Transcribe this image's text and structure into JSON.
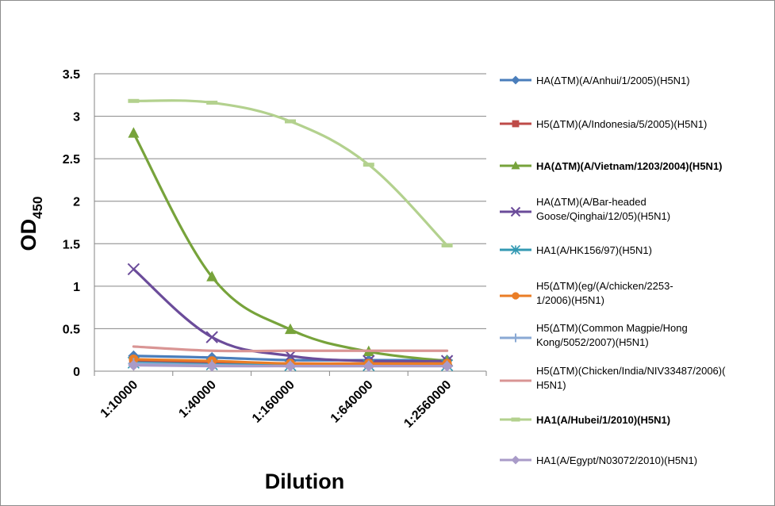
{
  "chart_data": {
    "type": "line",
    "categories": [
      "1:10000",
      "1:40000",
      "1:160000",
      "1:640000",
      "1:2560000"
    ],
    "xlabel": "Dilution",
    "ylabel": "OD",
    "ylabel_sub": "450",
    "ylim": [
      0,
      3.5
    ],
    "yticks": [
      "0",
      "0.5",
      "1",
      "1.5",
      "2",
      "2.5",
      "3",
      "3.5"
    ],
    "grid": true,
    "legend_position": "right",
    "series": [
      {
        "name": "HA(ΔTM)(A/Anhui/1/2005)(H5N1)",
        "legend_lines": [
          "HA(ΔTM)(A/Anhui/1/2005)(H5N1)"
        ],
        "bold": false,
        "color": "#4a7ebb",
        "marker": "diamond",
        "values": [
          0.18,
          0.16,
          0.13,
          0.13,
          0.13
        ]
      },
      {
        "name": "H5(ΔTM)(A/Indonesia/5/2005)(H5N1)",
        "legend_lines": [
          "H5(ΔTM)(A/Indonesia/5/2005)(H5N1)"
        ],
        "bold": false,
        "color": "#be4b48",
        "marker": "square",
        "values": [
          0.12,
          0.1,
          0.09,
          0.09,
          0.09
        ]
      },
      {
        "name": "HA(ΔTM)(A/Vietnam/1203/2004)(H5N1)",
        "legend_lines": [
          "HA(ΔTM)(A/Vietnam/1203/2004)(H5N1)"
        ],
        "bold": true,
        "color": "#77a33b",
        "marker": "triangle",
        "values": [
          2.8,
          1.11,
          0.49,
          0.23,
          0.12
        ]
      },
      {
        "name": "HA(ΔTM)(A/Bar-headed Goose/Qinghai/12/05)(H5N1)",
        "legend_lines": [
          "HA(ΔTM)(A/Bar-headed",
          "Goose/Qinghai/12/05)(H5N1)"
        ],
        "bold": false,
        "color": "#6b4c9a",
        "marker": "x",
        "values": [
          1.2,
          0.4,
          0.18,
          0.12,
          0.12
        ]
      },
      {
        "name": "HA1(A/HK156/97)(H5N1)",
        "legend_lines": [
          "HA1(A/HK156/97)(H5N1)"
        ],
        "bold": false,
        "color": "#3399b3",
        "marker": "asterisk",
        "values": [
          0.1,
          0.08,
          0.07,
          0.07,
          0.07
        ]
      },
      {
        "name": "H5(ΔTM)(eg/(A/chicken/2253-1/2006)(H5N1)",
        "legend_lines": [
          "H5(ΔTM)(eg/(A/chicken/2253-",
          "1/2006)(H5N1)"
        ],
        "bold": false,
        "color": "#ea7d26",
        "marker": "circle",
        "values": [
          0.14,
          0.12,
          0.09,
          0.09,
          0.09
        ]
      },
      {
        "name": "H5(ΔTM)(Common Magpie/Hong Kong/5052/2007)(H5N1)",
        "legend_lines": [
          "H5(ΔTM)(Common Magpie/Hong",
          "Kong/5052/2007)(H5N1)"
        ],
        "bold": false,
        "color": "#8aa9d4",
        "marker": "plus",
        "values": [
          0.09,
          0.07,
          0.06,
          0.06,
          0.06
        ]
      },
      {
        "name": "H5(ΔTM)(Chicken/India/NIV33487/2006)(H5N1)",
        "legend_lines": [
          "H5(ΔTM)(Chicken/India/NIV33487/2006)(",
          "H5N1)"
        ],
        "bold": false,
        "color": "#d99594",
        "marker": "none",
        "values": [
          0.29,
          0.24,
          0.24,
          0.24,
          0.24
        ]
      },
      {
        "name": "HA1(A/Hubei/1/2010)(H5N1)",
        "legend_lines": [
          "HA1(A/Hubei/1/2010)(H5N1)"
        ],
        "bold": true,
        "color": "#b3d18e",
        "marker": "dash",
        "values": [
          3.18,
          3.16,
          2.94,
          2.43,
          1.48
        ]
      },
      {
        "name": "HA1(A/Egypt/N03072/2010)(H5N1)",
        "legend_lines": [
          "HA1(A/Egypt/N03072/2010)(H5N1)"
        ],
        "bold": false,
        "color": "#a99bc8",
        "marker": "diamond",
        "values": [
          0.07,
          0.06,
          0.06,
          0.06,
          0.06
        ]
      }
    ]
  }
}
